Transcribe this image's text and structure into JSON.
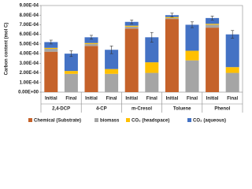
{
  "chart_data": {
    "type": "stacked-bar",
    "y_label": "Carbon content (mol C)",
    "categories": [
      "Initial",
      "Final",
      "Initial",
      "Final",
      "Initial",
      "Final",
      "Initial",
      "Final",
      "Initial",
      "Final"
    ],
    "groups": [
      "2,4-DCP",
      "4-CP",
      "m-Cresol",
      "Toluene",
      "Phenol"
    ],
    "series": [
      {
        "name": "Chemical (Substrate)",
        "color": "#c5622a",
        "values": [
          0.00042,
          0,
          0.00048,
          0,
          0.00066,
          0,
          0.00076,
          0,
          0.00067,
          0
        ]
      },
      {
        "name": "biomass",
        "color": "#a5a5a5",
        "values": [
          3e-05,
          0.00019,
          2e-05,
          0.00019,
          2e-05,
          0.0002,
          1e-05,
          0.00033,
          3e-05,
          0.0002
        ]
      },
      {
        "name": "CO₂ (headspace)",
        "color": "#ffc000",
        "values": [
          1e-05,
          3e-05,
          1e-05,
          5e-05,
          1e-05,
          0.00011,
          1e-05,
          0.0001,
          1e-05,
          6e-05
        ]
      },
      {
        "name": "CO₂ (aqueous)",
        "color": "#4472c4",
        "values": [
          6e-05,
          0.00018,
          6e-05,
          0.0002,
          4e-05,
          0.00026,
          2e-05,
          0.00027,
          6e-05,
          0.00034
        ]
      }
    ],
    "errors": [
      2e-05,
      3e-05,
      2e-05,
      4e-05,
      2e-05,
      5e-05,
      2e-05,
      3e-05,
      2e-05,
      4e-05
    ],
    "ylim": [
      0,
      0.0009
    ],
    "yticks": [
      {
        "value": 0,
        "label": "0.00E+00"
      },
      {
        "value": 0.0001,
        "label": "1.00E-04"
      },
      {
        "value": 0.0002,
        "label": "2.00E-04"
      },
      {
        "value": 0.0003,
        "label": "3.00E-04"
      },
      {
        "value": 0.0004,
        "label": "4.00E-04"
      },
      {
        "value": 0.0005,
        "label": "5.00E-04"
      },
      {
        "value": 0.0006,
        "label": "6.00E-04"
      },
      {
        "value": 0.0007,
        "label": "7.00E-04"
      },
      {
        "value": 0.0008,
        "label": "8.00E-04"
      },
      {
        "value": 0.0009,
        "label": "9.00E-04"
      }
    ],
    "legend": "bottom"
  }
}
